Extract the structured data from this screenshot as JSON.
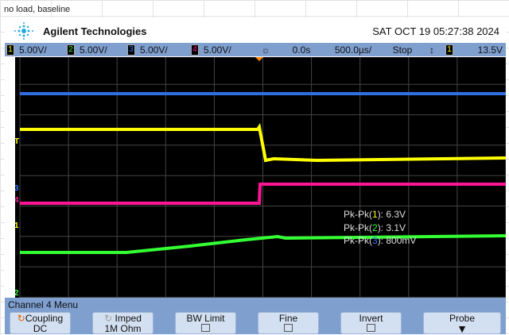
{
  "sheet": {
    "cell_text": "no load, baseline"
  },
  "header": {
    "brand": "Agilent Technologies",
    "datetime": "SAT OCT 19 05:27:38 2024"
  },
  "status": {
    "channels": [
      {
        "num": "1",
        "scale": "5.00V/",
        "color": "#ffff00"
      },
      {
        "num": "2",
        "scale": "5.00V/",
        "color": "#33ff33"
      },
      {
        "num": "3",
        "scale": "5.00V/",
        "color": "#3377ff"
      },
      {
        "num": "4",
        "scale": "5.00V/",
        "color": "#ff1493"
      }
    ],
    "delay": "0.0s",
    "timebase": "500.0µs/",
    "run_state": "Stop",
    "trigger_channel": "1",
    "trigger_level": "13.5V"
  },
  "markers": {
    "trigger": "T",
    "ch1": "1",
    "ch2": "2",
    "ch3": "3",
    "ch4": "4"
  },
  "measurements": [
    {
      "label": "Pk-Pk(",
      "ch": "1",
      "suffix": "): 6.3V",
      "color": "#ffff00"
    },
    {
      "label": "Pk-Pk(",
      "ch": "2",
      "suffix": "): 3.1V",
      "color": "#33ff33"
    },
    {
      "label": "Pk-Pk(",
      "ch": "3",
      "suffix": "): 800mV",
      "color": "#3377ff"
    }
  ],
  "menu": {
    "title": "Channel 4  Menu",
    "buttons": [
      {
        "label": "Coupling",
        "value": "DC"
      },
      {
        "label": "Imped",
        "value": "1M Ohm"
      },
      {
        "label": "BW Limit"
      },
      {
        "label": "Fine"
      },
      {
        "label": "Invert"
      },
      {
        "label": "Probe"
      }
    ]
  }
}
